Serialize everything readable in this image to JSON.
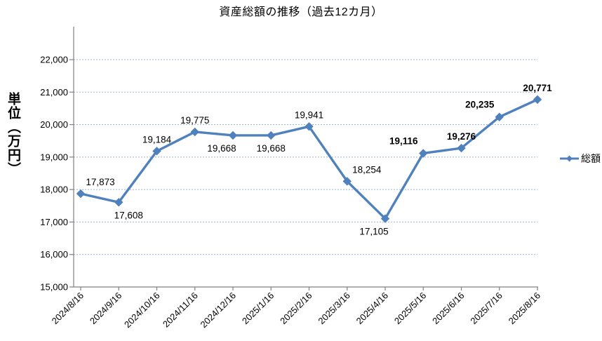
{
  "chart_data": {
    "type": "line",
    "title": "資産総額の推移（過去12カ月）",
    "ylabel": "単位（万円）",
    "xlabel": "",
    "categories": [
      "2024/8/16",
      "2024/9/16",
      "2024/10/16",
      "2024/11/16",
      "2024/12/16",
      "2025/1/16",
      "2025/2/16",
      "2025/3/16",
      "2025/4/16",
      "2025/5/16",
      "2025/6/16",
      "2025/7/16",
      "2025/8/16"
    ],
    "series": [
      {
        "name": "総額",
        "values": [
          17873,
          17608,
          19184,
          19775,
          19668,
          19668,
          19941,
          18254,
          17105,
          19116,
          19276,
          20235,
          20771
        ],
        "color": "#4F81BD",
        "marker": "diamond"
      }
    ],
    "ylim": [
      15000,
      22000
    ],
    "y_tick_step": 1000,
    "y_tick_labels": [
      "15,000",
      "16,000",
      "17,000",
      "18,000",
      "19,000",
      "20,000",
      "21,000",
      "22,000"
    ],
    "grid": "horizontal-dotted",
    "legend_position": "right-middle",
    "data_labels": {
      "text": [
        "17,873",
        "17,608",
        "19,184",
        "19,775",
        "19,668",
        "19,668",
        "19,941",
        "18,254",
        "17,105",
        "19,116",
        "19,276",
        "20,235",
        "20,771"
      ],
      "placement": [
        "above-right",
        "below-right",
        "above",
        "above",
        "below-left",
        "below",
        "above",
        "above-right",
        "below-left",
        "above-left",
        "above",
        "above-left",
        "above"
      ],
      "bold": [
        false,
        false,
        false,
        false,
        false,
        false,
        false,
        false,
        false,
        true,
        true,
        true,
        true
      ]
    },
    "colors": {
      "series": "#4F81BD",
      "gridline": "#95B3D7",
      "axis": "#808080",
      "text": "#000000"
    }
  }
}
